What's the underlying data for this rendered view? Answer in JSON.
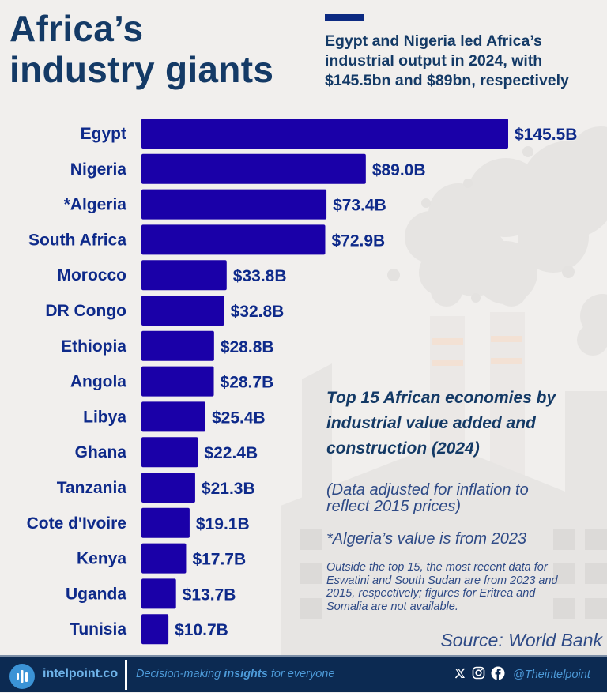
{
  "header": {
    "title_line1": "Africa’s",
    "title_line2": "industry giants",
    "subtitle": "Egypt and Nigeria led Africa’s industrial output in 2024, with $145.5bn and $89bn, respectively"
  },
  "notes": {
    "heading": "Top 15 African economies by industrial value added and construction (2024)",
    "inflation": "(Data adjusted for inflation to reflect 2015 prices)",
    "algeria": "*Algeria’s value is from 2023",
    "outside": "Outside the top 15, the most recent data for Eswatini and South Sudan are from 2023 and 2015, respectively; figures for Eritrea and Somalia are not available.",
    "source": "Source: World Bank"
  },
  "footer": {
    "brand": "intelpoint.co",
    "tagline_pre": "Decision-making ",
    "tagline_bold": "insights",
    "tagline_post": " for everyone",
    "handle": "@Theintelpoint",
    "icons": [
      "bar-chart-logo-icon",
      "x-icon",
      "instagram-icon",
      "facebook-icon"
    ]
  },
  "colors": {
    "bar": "#1a00a8",
    "label": "#0e2a8a",
    "title": "#143a66",
    "footer_bg": "#0c2a52"
  },
  "chart_data": {
    "type": "bar",
    "orientation": "horizontal",
    "title": "Top 15 African economies by industrial value added and construction (2024)",
    "xlabel": "",
    "ylabel": "",
    "unit": "USD billions (2015 prices)",
    "categories": [
      "Egypt",
      "Nigeria",
      "*Algeria",
      "South Africa",
      "Morocco",
      "DR Congo",
      "Ethiopia",
      "Angola",
      "Libya",
      "Ghana",
      "Tanzania",
      "Cote d'Ivoire",
      "Kenya",
      "Uganda",
      "Tunisia"
    ],
    "values": [
      145.5,
      89.0,
      73.4,
      72.9,
      33.8,
      32.8,
      28.8,
      28.7,
      25.4,
      22.4,
      21.3,
      19.1,
      17.7,
      13.7,
      10.7
    ],
    "value_labels": [
      "$145.5B",
      "$89.0B",
      "$73.4B",
      "$72.9B",
      "$33.8B",
      "$32.8B",
      "$28.8B",
      "$28.7B",
      "$25.4B",
      "$22.4B",
      "$21.3B",
      "$19.1B",
      "$17.7B",
      "$13.7B",
      "$10.7B"
    ],
    "xlim": [
      0,
      145.5
    ],
    "grid": false,
    "legend": "none"
  }
}
